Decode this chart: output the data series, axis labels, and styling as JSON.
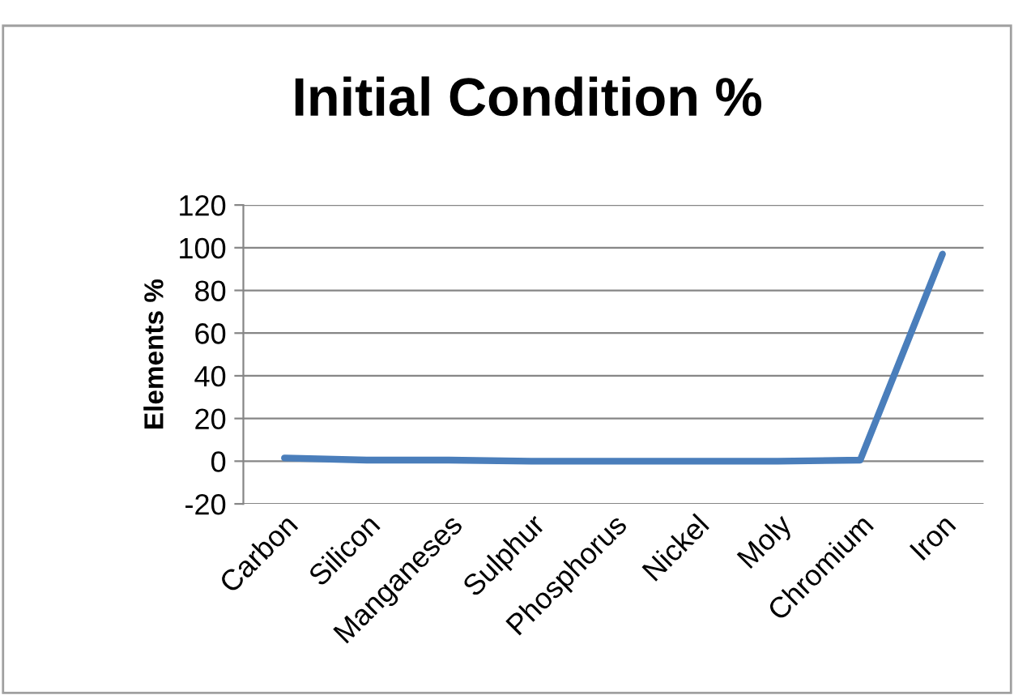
{
  "chart_data": {
    "type": "line",
    "title": "Initial Condition %",
    "ylabel": "Elements %",
    "categories": [
      "Carbon",
      "Silicon",
      "Manganeses",
      "Sulphur",
      "Phosphorus",
      "Nickel",
      "Moly",
      "Chromium",
      "Iron"
    ],
    "series": [
      {
        "color": "#4a7ebb",
        "values": [
          1.5,
          0.5,
          0.5,
          0,
          0,
          0,
          0,
          0.5,
          97
        ]
      }
    ],
    "ylim": [
      -20,
      120
    ],
    "yticks": [
      -20,
      0,
      20,
      40,
      60,
      80,
      100,
      120
    ],
    "grid": "y",
    "legend": false,
    "marker": "none",
    "line_style": "solid"
  }
}
